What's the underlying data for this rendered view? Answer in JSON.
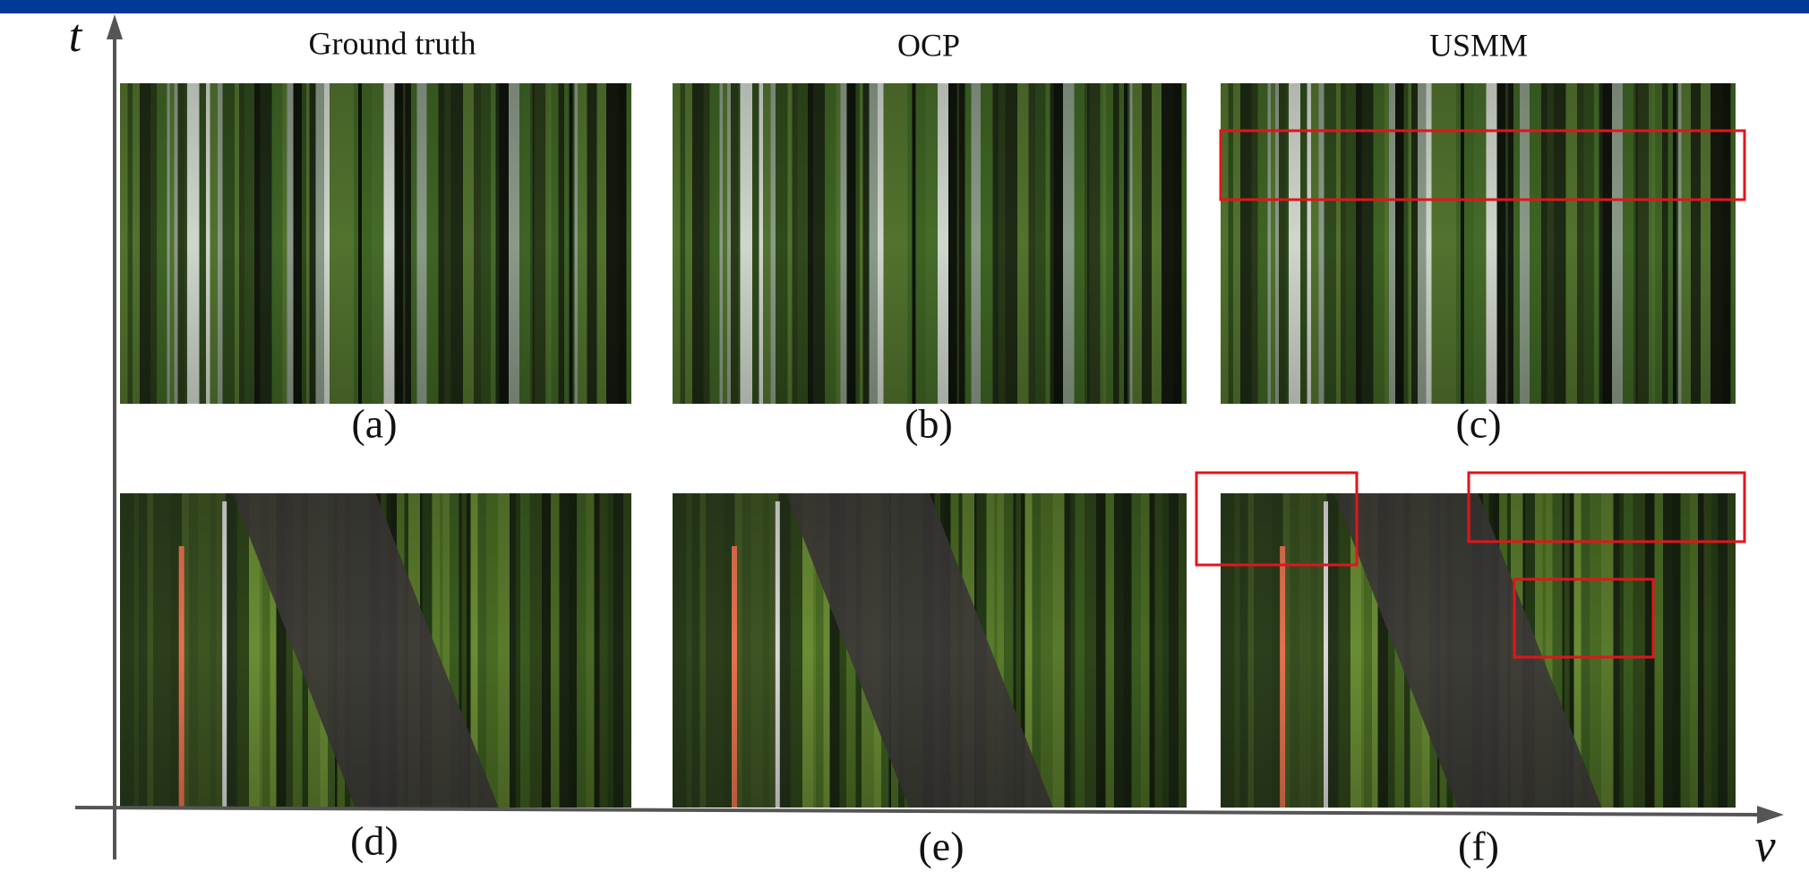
{
  "axes": {
    "y_label": "t",
    "x_label": "v"
  },
  "columns": [
    "Ground truth",
    "OCP",
    "USMM"
  ],
  "panels": [
    "(a)",
    "(b)",
    "(c)",
    "(d)",
    "(e)",
    "(f)"
  ]
}
